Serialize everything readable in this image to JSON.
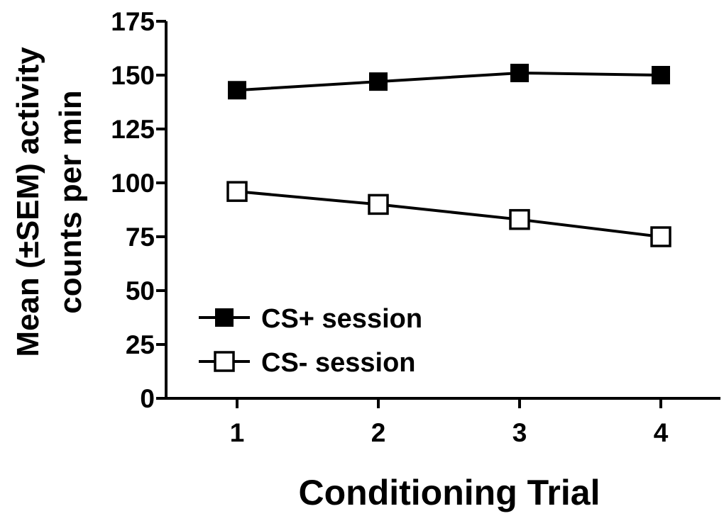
{
  "chart_data": {
    "type": "line",
    "categories": [
      "1",
      "2",
      "3",
      "4"
    ],
    "x": [
      1,
      2,
      3,
      4
    ],
    "xlabel": "Conditioning Trial",
    "ylabel_lines": [
      "Mean (±SEM) activity",
      "counts per min"
    ],
    "ylim": [
      0,
      175
    ],
    "yticks": [
      0,
      25,
      50,
      75,
      100,
      125,
      150,
      175
    ],
    "xticks": [
      1,
      2,
      3,
      4
    ],
    "grid": false,
    "legend_placement": "lower-left",
    "series": [
      {
        "name": "CS+ session",
        "values": [
          143,
          147,
          151,
          150
        ],
        "marker": "filled-square",
        "color": "#000000"
      },
      {
        "name": "CS- session",
        "values": [
          96,
          90,
          83,
          75
        ],
        "marker": "open-square",
        "color": "#000000"
      }
    ]
  }
}
